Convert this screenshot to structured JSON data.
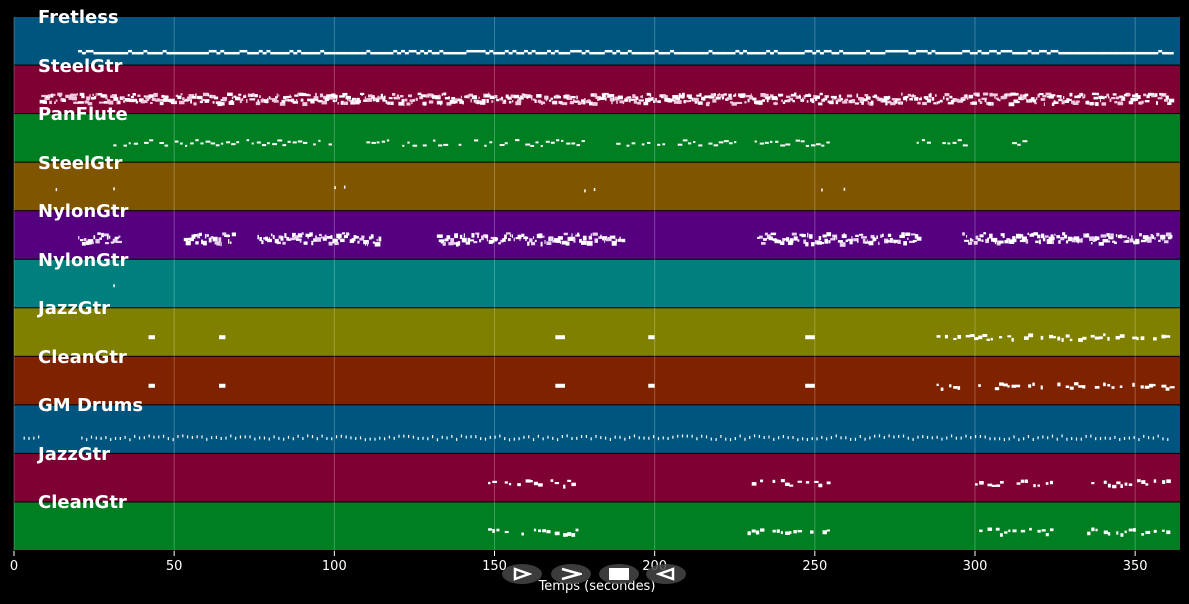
{
  "chart_data": {
    "type": "piano-roll",
    "xlabel": "Temps (secondes)",
    "xlim": [
      0,
      364
    ],
    "xticks": [
      0,
      50,
      100,
      150,
      200,
      250,
      300,
      350
    ],
    "grid": true,
    "tracks": [
      {
        "name": "Fretless",
        "color": "#00557f",
        "segments": [
          [
            20,
            361
          ]
        ],
        "style": "line"
      },
      {
        "name": "SteelGtr",
        "color": "#7f0033",
        "segments": [
          [
            8,
            361
          ]
        ],
        "style": "dense"
      },
      {
        "name": "PanFlute",
        "color": "#007f22",
        "segments": [
          [
            31,
            99
          ],
          [
            110,
            178
          ],
          [
            188,
            255
          ],
          [
            277,
            299
          ],
          [
            310,
            316
          ]
        ],
        "style": "sparse"
      },
      {
        "name": "SteelGtr",
        "color": "#7f5500",
        "segments": [
          [
            13,
            13.5
          ],
          [
            31,
            31.5
          ],
          [
            100,
            100.5
          ],
          [
            103,
            103.5
          ],
          [
            178,
            178.5
          ],
          [
            181,
            181.5
          ],
          [
            252,
            252.5
          ],
          [
            259,
            259.5
          ]
        ],
        "style": "dots"
      },
      {
        "name": "NylonGtr",
        "color": "#55007f",
        "segments": [
          [
            20,
            33
          ],
          [
            53,
            68
          ],
          [
            76,
            114
          ],
          [
            132,
            190
          ],
          [
            232,
            282
          ],
          [
            296,
            361
          ]
        ],
        "style": "block"
      },
      {
        "name": "NylonGtr",
        "color": "#007f7f",
        "segments": [
          [
            31,
            31.5
          ]
        ],
        "style": "dots"
      },
      {
        "name": "JazzGtr",
        "color": "#7f7f00",
        "segments": [
          [
            42,
            44
          ],
          [
            64,
            66
          ],
          [
            169,
            172
          ],
          [
            198,
            200
          ],
          [
            247,
            250
          ],
          [
            288,
            361
          ]
        ],
        "style": "sparse2"
      },
      {
        "name": "CleanGtr",
        "color": "#7f2200",
        "segments": [
          [
            42,
            44
          ],
          [
            64,
            66
          ],
          [
            169,
            172
          ],
          [
            198,
            200
          ],
          [
            247,
            250
          ],
          [
            288,
            361
          ]
        ],
        "style": "sparse2"
      },
      {
        "name": "GM Drums",
        "color": "#00557f",
        "segments": [
          [
            3,
            8
          ],
          [
            21,
            361
          ]
        ],
        "style": "drums"
      },
      {
        "name": "JazzGtr",
        "color": "#7f0033",
        "segments": [
          [
            148,
            176
          ],
          [
            229,
            254
          ],
          [
            300,
            324
          ],
          [
            335,
            361
          ]
        ],
        "style": "sparse2"
      },
      {
        "name": "CleanGtr",
        "color": "#007f22",
        "segments": [
          [
            148,
            176
          ],
          [
            229,
            254
          ],
          [
            300,
            324
          ],
          [
            335,
            361
          ]
        ],
        "style": "sparse2"
      }
    ]
  },
  "controls": [
    {
      "name": "play-reverse-button",
      "icon": "triangle-outline-right"
    },
    {
      "name": "forward-button",
      "icon": "chevron-right"
    },
    {
      "name": "stop-button",
      "icon": "square"
    },
    {
      "name": "play-button",
      "icon": "triangle-outline-left"
    }
  ]
}
